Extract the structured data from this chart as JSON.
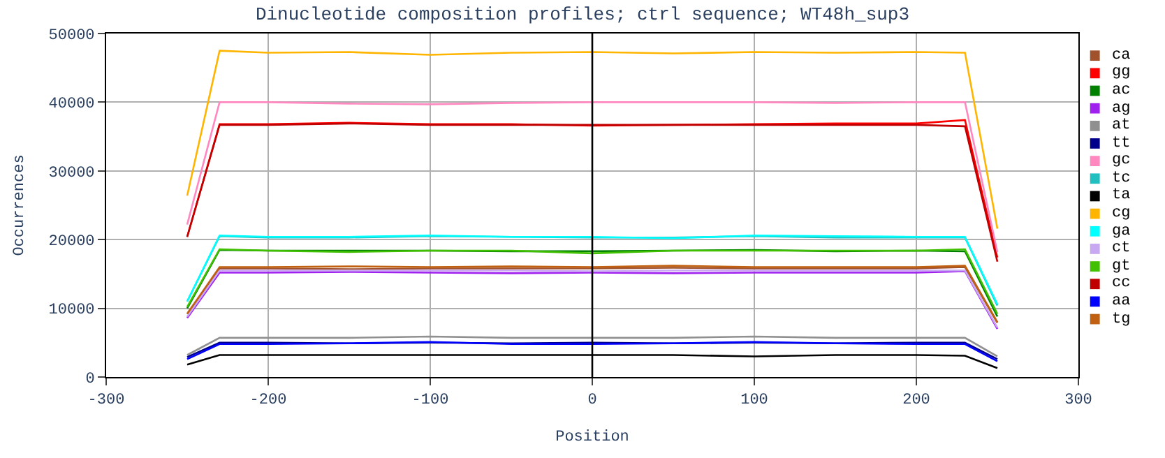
{
  "chart_data": {
    "type": "line",
    "title": "Dinucleotide composition profiles; ctrl sequence; WT48h_sup3",
    "xlabel": "Position",
    "ylabel": "Occurrences",
    "x": [
      -250,
      -230,
      -200,
      -150,
      -100,
      -50,
      0,
      50,
      100,
      150,
      200,
      230,
      250
    ],
    "xlim": [
      -300,
      300
    ],
    "xticks": [
      -300,
      -200,
      -100,
      0,
      100,
      200,
      300
    ],
    "ylim": [
      0,
      50000
    ],
    "yticks": [
      0,
      10000,
      20000,
      30000,
      40000,
      50000
    ],
    "grid": true,
    "legend": "right",
    "marker": "none",
    "line_style": "solid",
    "ref_lines": [
      {
        "axis": "x",
        "value": 0,
        "color": "#000000"
      }
    ],
    "series": [
      {
        "name": "ca",
        "color": "#a0522d",
        "values": [
          9200,
          15800,
          15800,
          15700,
          15800,
          15800,
          15800,
          15900,
          15800,
          15800,
          15800,
          16000,
          7900
        ]
      },
      {
        "name": "gg",
        "color": "#ff0000",
        "values": [
          20400,
          36800,
          36800,
          37000,
          36800,
          36800,
          36600,
          36700,
          36800,
          36900,
          36900,
          37400,
          17400
        ]
      },
      {
        "name": "ac",
        "color": "#008000",
        "values": [
          10000,
          18500,
          18400,
          18400,
          18400,
          18300,
          18300,
          18400,
          18500,
          18300,
          18400,
          18300,
          8800
        ]
      },
      {
        "name": "ag",
        "color": "#a020f0",
        "values": [
          8600,
          15200,
          15200,
          15300,
          15200,
          15100,
          15200,
          15100,
          15200,
          15200,
          15200,
          15400,
          7000
        ]
      },
      {
        "name": "at",
        "color": "#909090",
        "values": [
          3200,
          5700,
          5700,
          5700,
          5900,
          5700,
          5700,
          5700,
          5900,
          5700,
          5700,
          5700,
          3000
        ]
      },
      {
        "name": "tt",
        "color": "#00008b",
        "values": [
          2900,
          5000,
          5000,
          4900,
          5000,
          4900,
          5000,
          4900,
          5000,
          4900,
          5000,
          5000,
          2600
        ]
      },
      {
        "name": "gc",
        "color": "#ff88c0",
        "values": [
          22200,
          40000,
          40000,
          39800,
          39700,
          39900,
          40000,
          40000,
          40000,
          39900,
          40000,
          40000,
          18200
        ]
      },
      {
        "name": "tc",
        "color": "#20c0c0",
        "values": [
          11000,
          20500,
          20300,
          20300,
          20500,
          20400,
          20300,
          20300,
          20500,
          20300,
          20300,
          20300,
          10400
        ]
      },
      {
        "name": "ta",
        "color": "#000000",
        "values": [
          1800,
          3200,
          3200,
          3200,
          3200,
          3200,
          3200,
          3200,
          3000,
          3200,
          3200,
          3100,
          1300
        ]
      },
      {
        "name": "cg",
        "color": "#ffb400",
        "values": [
          26400,
          47500,
          47200,
          47300,
          46900,
          47200,
          47300,
          47100,
          47300,
          47200,
          47300,
          47200,
          21600
        ]
      },
      {
        "name": "ga",
        "color": "#00ffff",
        "values": [
          11000,
          20600,
          20400,
          20400,
          20600,
          20400,
          20400,
          20200,
          20600,
          20500,
          20400,
          20400,
          10600
        ]
      },
      {
        "name": "ct",
        "color": "#c8a8f0",
        "values": [
          8800,
          15500,
          15500,
          15500,
          15500,
          15500,
          15400,
          15500,
          15500,
          15500,
          15500,
          15500,
          7200
        ]
      },
      {
        "name": "gt",
        "color": "#40c000",
        "values": [
          10200,
          18600,
          18400,
          18200,
          18400,
          18400,
          18000,
          18400,
          18400,
          18400,
          18400,
          18600,
          9200
        ]
      },
      {
        "name": "cc",
        "color": "#c00000",
        "values": [
          20400,
          36700,
          36700,
          36900,
          36700,
          36700,
          36700,
          36700,
          36700,
          36700,
          36700,
          36500,
          16800
        ]
      },
      {
        "name": "aa",
        "color": "#0000ff",
        "values": [
          2600,
          4800,
          4800,
          4900,
          5100,
          4800,
          4800,
          4900,
          5100,
          4900,
          4800,
          4800,
          2300
        ]
      },
      {
        "name": "tg",
        "color": "#c06010",
        "values": [
          9200,
          16000,
          16000,
          16100,
          16000,
          16100,
          16000,
          16200,
          16000,
          16000,
          16000,
          16200,
          8000
        ]
      }
    ]
  }
}
